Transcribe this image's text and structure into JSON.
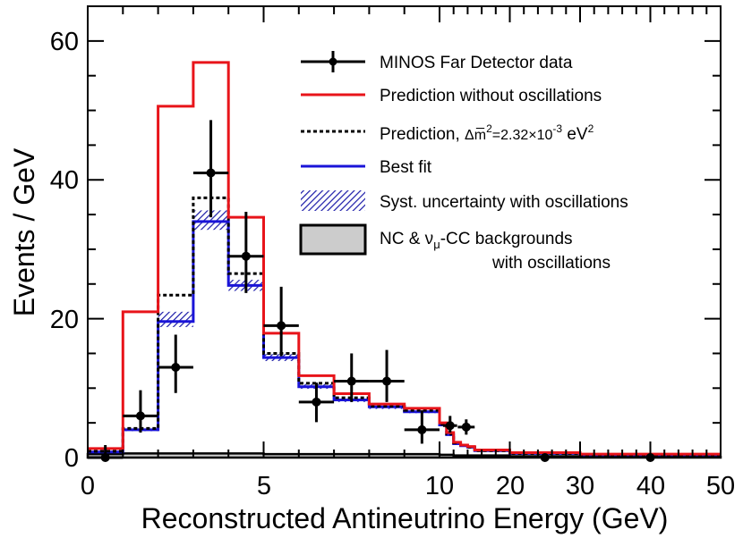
{
  "chart_data": {
    "type": "histogram",
    "title": "",
    "xlabel": "Reconstructed Antineutrino Energy (GeV)",
    "ylabel": "Events / GeV",
    "ylim": [
      0,
      65
    ],
    "x_scale_note": "0-10 GeV linear, 10-50 GeV compressed",
    "x_ticks": [
      {
        "value": 0,
        "label": "0"
      },
      {
        "value": 5,
        "label": "5"
      },
      {
        "value": 10,
        "label": "10"
      },
      {
        "value": 20,
        "label": "20"
      },
      {
        "value": 30,
        "label": "30"
      },
      {
        "value": 40,
        "label": "40"
      },
      {
        "value": 50,
        "label": "50"
      }
    ],
    "y_ticks": [
      {
        "value": 0,
        "label": "0"
      },
      {
        "value": 20,
        "label": "20"
      },
      {
        "value": 40,
        "label": "40"
      },
      {
        "value": 60,
        "label": "60"
      }
    ],
    "bin_edges": [
      0,
      1,
      2,
      3,
      4,
      5,
      6,
      7,
      8,
      9,
      10,
      11,
      12,
      13,
      14,
      15,
      20,
      30,
      40,
      50
    ],
    "series": [
      {
        "name": "Prediction without oscillations",
        "style": "red-line",
        "values": [
          1.3,
          21.0,
          50.6,
          56.9,
          34.6,
          17.9,
          11.8,
          9.2,
          7.7,
          7.1,
          5.0,
          3.6,
          2.2,
          1.8,
          1.6,
          1.1,
          0.7,
          0.5,
          0.5
        ]
      },
      {
        "name": "Prediction, dm2=2.32e-3 eV2",
        "style": "black-dotted",
        "values": [
          0.9,
          4.2,
          23.4,
          37.4,
          26.5,
          15.0,
          10.7,
          8.6,
          7.4,
          6.8,
          4.8,
          3.4,
          2.1,
          1.8,
          1.5,
          1.0,
          0.6,
          0.4,
          0.4
        ]
      },
      {
        "name": "Best fit",
        "style": "blue-line",
        "values": [
          0.8,
          4.0,
          19.6,
          34.0,
          24.8,
          14.4,
          10.2,
          8.3,
          7.3,
          6.6,
          4.7,
          3.3,
          2.0,
          1.7,
          1.5,
          1.0,
          0.6,
          0.4,
          0.4
        ]
      },
      {
        "name": "Syst. uncertainty with oscillations",
        "style": "hatched-band",
        "lower": [
          0.6,
          3.8,
          18.8,
          32.8,
          24.0,
          13.9,
          9.9,
          8.0,
          7.0,
          6.4,
          4.5,
          3.1,
          1.9,
          1.6,
          1.4,
          0.9,
          0.5,
          0.3,
          0.3
        ],
        "upper": [
          1.0,
          4.3,
          21.0,
          35.6,
          25.6,
          14.9,
          10.6,
          8.7,
          7.6,
          6.9,
          4.9,
          3.5,
          2.1,
          1.9,
          1.6,
          1.1,
          0.7,
          0.5,
          0.5
        ]
      },
      {
        "name": "NC & nu_mu-CC backgrounds with oscillations",
        "style": "gray-filled",
        "values": [
          0.5,
          0.6,
          0.6,
          0.6,
          0.6,
          0.5,
          0.5,
          0.5,
          0.5,
          0.5,
          0.4,
          0.4,
          0.3,
          0.3,
          0.3,
          0.3,
          0.2,
          0.1,
          0.1
        ]
      }
    ],
    "data_points": {
      "name": "MINOS Far Detector data",
      "points": [
        {
          "x": 0.5,
          "xerr": 0.5,
          "y": 0,
          "ylo": 0,
          "yhi": 1.8
        },
        {
          "x": 1.5,
          "xerr": 0.5,
          "y": 6,
          "ylo": 3.6,
          "yhi": 9.7
        },
        {
          "x": 2.5,
          "xerr": 0.5,
          "y": 13,
          "ylo": 9.3,
          "yhi": 17.7
        },
        {
          "x": 3.5,
          "xerr": 0.5,
          "y": 41,
          "ylo": 34.6,
          "yhi": 48.6
        },
        {
          "x": 4.5,
          "xerr": 0.5,
          "y": 29,
          "ylo": 23.7,
          "yhi": 35.4
        },
        {
          "x": 5.5,
          "xerr": 0.5,
          "y": 19,
          "ylo": 14.6,
          "yhi": 24.6
        },
        {
          "x": 6.5,
          "xerr": 0.5,
          "y": 8,
          "ylo": 5.1,
          "yhi": 10.8
        },
        {
          "x": 7.5,
          "xerr": 0.5,
          "y": 11,
          "ylo": 8.0,
          "yhi": 15.0
        },
        {
          "x": 8.5,
          "xerr": 0.5,
          "y": 11,
          "ylo": 8.0,
          "yhi": 15.5
        },
        {
          "x": 9.5,
          "xerr": 0.5,
          "y": 4,
          "ylo": 2.0,
          "yhi": 6.8
        },
        {
          "x": 11.5,
          "xerr": 1.0,
          "y": 4.6,
          "ylo": 3.6,
          "yhi": 6.0
        },
        {
          "x": 13.8,
          "xerr": 1.2,
          "y": 4.4,
          "ylo": 3.3,
          "yhi": 5.5
        },
        {
          "x": 25,
          "xerr": 0,
          "y": 0,
          "ylo": 0,
          "yhi": 0.3
        },
        {
          "x": 40,
          "xerr": 0,
          "y": 0,
          "ylo": 0,
          "yhi": 0.3
        }
      ]
    },
    "legend": {
      "placement": "top-right",
      "entries": [
        {
          "key": "data",
          "label": "MINOS Far Detector data"
        },
        {
          "key": "noosc",
          "label": "Prediction without oscillations"
        },
        {
          "key": "pred",
          "label_main": "Prediction, ",
          "label_dm": "Δm̅",
          "label_sup": "2",
          "label_value": "=2.32×10",
          "label_exp": "-3",
          "label_unit": " eV",
          "label_unit_sup": "2"
        },
        {
          "key": "bestfit",
          "label": "Best fit"
        },
        {
          "key": "syst",
          "label": "Syst. uncertainty with oscillations"
        },
        {
          "key": "bkg",
          "label_main": "NC & ν",
          "label_sub": "μ",
          "label_rest": "-CC backgrounds",
          "label_line2": "with oscillations"
        }
      ]
    }
  }
}
